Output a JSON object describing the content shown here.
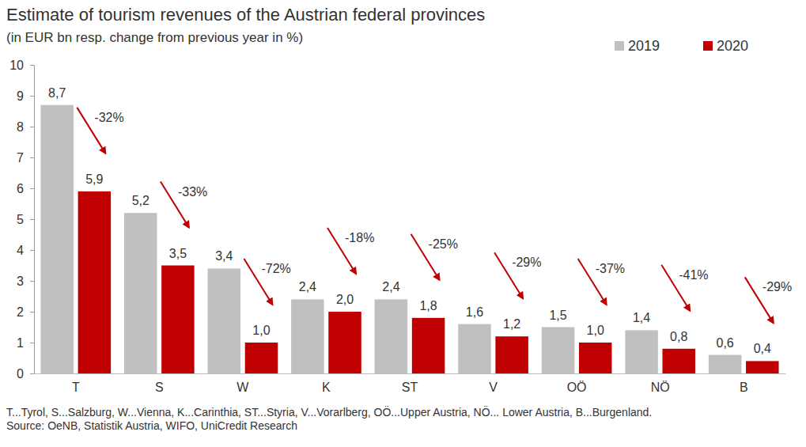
{
  "chart_data": {
    "type": "bar",
    "title": "Estimate of tourism revenues of the Austrian federal provinces",
    "subtitle": "(in EUR bn resp. change from previous year in %)",
    "categories": [
      "T",
      "S",
      "W",
      "K",
      "ST",
      "V",
      "OÖ",
      "NÖ",
      "B"
    ],
    "series": [
      {
        "name": "2019",
        "color": "#c0c0c0",
        "values": [
          8.7,
          5.2,
          3.4,
          2.4,
          2.4,
          1.6,
          1.5,
          1.4,
          0.6
        ],
        "value_labels": [
          "8,7",
          "5,2",
          "3,4",
          "2,4",
          "2,4",
          "1,6",
          "1,5",
          "1,4",
          "0,6"
        ]
      },
      {
        "name": "2020",
        "color": "#c00000",
        "values": [
          5.9,
          3.5,
          1.0,
          2.0,
          1.8,
          1.2,
          1.0,
          0.8,
          0.4
        ],
        "value_labels": [
          "5,9",
          "3,5",
          "1,0",
          "2,0",
          "1,8",
          "1,2",
          "1,0",
          "0,8",
          "0,4"
        ]
      }
    ],
    "annotations": [
      "-32%",
      "-33%",
      "-72%",
      "-18%",
      "-25%",
      "-29%",
      "-37%",
      "-41%",
      "-29%"
    ],
    "notes": [
      "T...Tyrol, S...Salzburg, W...Vienna, K...Carinthia, ST...Styria, V...Vorarlberg, OÖ...Upper Austria, NÖ... Lower Austria, B...Burgenland.",
      "Source: OeNB, Statistik Austria, WIFO, UniCredit Research"
    ],
    "ylim": [
      0,
      10
    ],
    "yticks": [
      0,
      1,
      2,
      3,
      4,
      5,
      6,
      7,
      8,
      9,
      10
    ],
    "grid": false,
    "legend": "top-right",
    "data_labels": true
  }
}
